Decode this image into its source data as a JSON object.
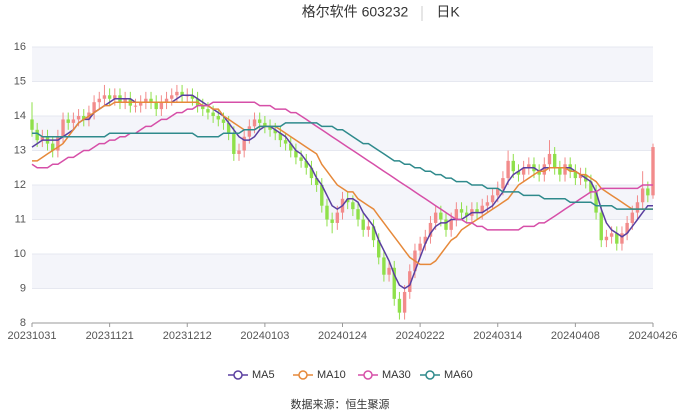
{
  "chart_data": {
    "type": "candlestick",
    "title": "格尔软件 603232",
    "subtitle": "日K",
    "source": "数据来源：恒生聚源",
    "categories": [
      "20231031",
      null,
      null,
      null,
      null,
      null,
      null,
      null,
      null,
      null,
      null,
      null,
      null,
      null,
      null,
      "20231121",
      null,
      null,
      null,
      null,
      null,
      null,
      null,
      null,
      null,
      null,
      null,
      null,
      null,
      null,
      "20231212",
      null,
      null,
      null,
      null,
      null,
      null,
      null,
      null,
      null,
      null,
      null,
      null,
      null,
      null,
      "20240103",
      null,
      null,
      null,
      null,
      null,
      null,
      null,
      null,
      null,
      null,
      null,
      null,
      null,
      null,
      "20240124",
      null,
      null,
      null,
      null,
      null,
      null,
      null,
      null,
      null,
      null,
      null,
      null,
      null,
      null,
      "20240222",
      null,
      null,
      null,
      null,
      null,
      null,
      null,
      null,
      null,
      null,
      null,
      null,
      null,
      null,
      "20240314",
      null,
      null,
      null,
      null,
      null,
      null,
      null,
      null,
      null,
      null,
      null,
      null,
      null,
      null,
      "20240408",
      null,
      null,
      null,
      null,
      null,
      null,
      null,
      null,
      null,
      null,
      null,
      null,
      null,
      null,
      "20240426"
    ],
    "open": [
      13.9,
      13.6,
      13.3,
      13.4,
      13.2,
      13.0,
      13.4,
      13.9,
      13.8,
      13.9,
      14.0,
      13.9,
      14.1,
      14.4,
      14.5,
      14.6,
      14.5,
      14.6,
      14.4,
      14.5,
      14.3,
      14.3,
      14.4,
      14.5,
      14.4,
      14.2,
      14.4,
      14.5,
      14.6,
      14.7,
      14.6,
      14.6,
      14.5,
      14.3,
      14.2,
      14.1,
      14.0,
      13.9,
      13.8,
      13.5,
      12.9,
      13.0,
      13.4,
      13.7,
      13.9,
      13.8,
      13.7,
      13.6,
      13.5,
      13.3,
      13.2,
      13.0,
      12.8,
      12.7,
      12.5,
      12.2,
      12.0,
      11.4,
      11.0,
      10.9,
      11.2,
      11.6,
      11.5,
      11.3,
      11.0,
      10.7,
      10.8,
      10.4,
      9.9,
      9.4,
      9.6,
      8.7,
      8.3,
      8.9,
      9.5,
      10.1,
      10.3,
      10.5,
      10.9,
      11.2,
      11.0,
      10.7,
      11.0,
      11.3,
      11.2,
      11.1,
      11.3,
      11.2,
      11.4,
      11.5,
      11.7,
      11.9,
      12.2,
      12.7,
      12.4,
      12.3,
      12.5,
      12.6,
      12.4,
      12.3,
      12.6,
      12.9,
      12.5,
      12.3,
      12.6,
      12.4,
      12.2,
      12.3,
      12.1,
      11.8,
      11.2,
      10.4,
      10.5,
      10.6,
      10.3,
      10.6,
      10.9,
      11.2,
      11.5,
      11.9,
      11.7
    ],
    "high": [
      14.4,
      13.8,
      13.6,
      13.6,
      13.4,
      13.6,
      14.1,
      14.1,
      14.1,
      14.2,
      14.2,
      14.3,
      14.6,
      14.7,
      14.9,
      14.8,
      14.8,
      14.8,
      14.7,
      14.7,
      14.5,
      14.6,
      14.7,
      14.7,
      14.6,
      14.6,
      14.7,
      14.8,
      14.9,
      14.9,
      14.8,
      14.8,
      14.7,
      14.5,
      14.4,
      14.3,
      14.2,
      14.1,
      14.0,
      13.7,
      13.2,
      13.6,
      13.9,
      14.1,
      14.1,
      14.0,
      13.9,
      13.8,
      13.7,
      13.5,
      13.4,
      13.2,
      13.0,
      12.9,
      12.7,
      12.4,
      12.2,
      11.6,
      11.2,
      11.4,
      11.8,
      11.8,
      11.7,
      11.5,
      11.2,
      11.0,
      11.0,
      10.6,
      10.1,
      9.8,
      9.8,
      8.9,
      9.1,
      9.7,
      10.3,
      10.5,
      10.7,
      11.1,
      11.4,
      11.4,
      11.2,
      11.2,
      11.5,
      11.5,
      11.4,
      11.5,
      11.5,
      11.6,
      11.7,
      11.9,
      12.1,
      12.4,
      13.0,
      12.9,
      12.6,
      12.7,
      12.8,
      12.8,
      12.6,
      12.8,
      13.3,
      13.1,
      12.7,
      12.8,
      12.8,
      12.6,
      12.5,
      12.5,
      12.3,
      12.0,
      11.4,
      10.7,
      10.8,
      10.8,
      10.8,
      11.1,
      11.4,
      11.7,
      12.4,
      12.1,
      13.2
    ],
    "low": [
      13.4,
      13.1,
      13.1,
      13.0,
      12.8,
      12.8,
      13.2,
      13.6,
      13.6,
      13.7,
      13.7,
      13.7,
      13.9,
      14.2,
      14.3,
      14.3,
      14.3,
      14.2,
      14.2,
      14.1,
      14.1,
      14.1,
      14.2,
      14.2,
      14.0,
      14.0,
      14.2,
      14.3,
      14.4,
      14.4,
      14.4,
      14.3,
      14.1,
      14.0,
      13.9,
      13.8,
      13.7,
      13.6,
      13.3,
      12.7,
      12.7,
      12.8,
      13.2,
      13.5,
      13.6,
      13.5,
      13.4,
      13.3,
      13.1,
      13.0,
      12.8,
      12.6,
      12.5,
      12.3,
      12.0,
      11.8,
      11.2,
      10.8,
      10.6,
      10.7,
      11.0,
      11.3,
      11.1,
      10.8,
      10.5,
      10.5,
      10.2,
      9.7,
      9.2,
      9.2,
      8.5,
      8.1,
      8.1,
      8.7,
      9.3,
      9.9,
      10.1,
      10.3,
      10.7,
      10.8,
      10.5,
      10.5,
      10.8,
      11.0,
      10.9,
      10.9,
      11.0,
      11.0,
      11.2,
      11.3,
      11.5,
      11.7,
      12.0,
      12.2,
      12.1,
      12.1,
      12.3,
      12.2,
      12.1,
      12.1,
      12.4,
      12.3,
      12.1,
      12.1,
      12.2,
      12.0,
      12.0,
      11.9,
      11.6,
      11.0,
      10.2,
      10.2,
      10.3,
      10.1,
      10.1,
      10.4,
      10.7,
      11.0,
      11.3,
      11.5,
      11.6
    ],
    "close": [
      13.6,
      13.3,
      13.4,
      13.2,
      13.0,
      13.4,
      13.9,
      13.8,
      13.9,
      14.0,
      13.9,
      14.1,
      14.4,
      14.5,
      14.6,
      14.5,
      14.6,
      14.4,
      14.5,
      14.3,
      14.3,
      14.4,
      14.5,
      14.4,
      14.2,
      14.4,
      14.5,
      14.6,
      14.7,
      14.6,
      14.6,
      14.5,
      14.3,
      14.2,
      14.1,
      14.0,
      13.9,
      13.8,
      13.5,
      12.9,
      13.0,
      13.4,
      13.7,
      13.9,
      13.8,
      13.7,
      13.6,
      13.5,
      13.3,
      13.2,
      13.0,
      12.8,
      12.7,
      12.5,
      12.2,
      12.0,
      11.4,
      11.0,
      10.9,
      11.2,
      11.6,
      11.5,
      11.3,
      11.0,
      10.7,
      10.8,
      10.4,
      9.9,
      9.4,
      9.6,
      8.7,
      8.3,
      8.9,
      9.5,
      10.1,
      10.3,
      10.5,
      10.9,
      11.2,
      11.0,
      10.7,
      11.0,
      11.3,
      11.2,
      11.1,
      11.3,
      11.2,
      11.4,
      11.5,
      11.7,
      11.9,
      12.2,
      12.7,
      12.4,
      12.3,
      12.5,
      12.6,
      12.4,
      12.3,
      12.6,
      12.9,
      12.5,
      12.3,
      12.6,
      12.4,
      12.2,
      12.3,
      12.1,
      11.8,
      11.2,
      10.4,
      10.5,
      10.6,
      10.3,
      10.6,
      10.9,
      11.2,
      11.5,
      11.9,
      11.7,
      13.1
    ],
    "up_color": "#f28b8b",
    "down_color": "#8fe04a",
    "series": [
      {
        "name": "MA5",
        "color": "#5a3fa0",
        "values": [
          13.1,
          13.2,
          13.3,
          13.3,
          13.3,
          13.3,
          13.4,
          13.5,
          13.6,
          13.8,
          13.9,
          13.9,
          14.1,
          14.2,
          14.3,
          14.4,
          14.5,
          14.5,
          14.5,
          14.5,
          14.4,
          14.4,
          14.4,
          14.4,
          14.4,
          14.4,
          14.4,
          14.4,
          14.5,
          14.6,
          14.6,
          14.6,
          14.5,
          14.4,
          14.3,
          14.2,
          14.1,
          14.0,
          13.8,
          13.6,
          13.4,
          13.3,
          13.3,
          13.4,
          13.6,
          13.7,
          13.7,
          13.6,
          13.5,
          13.4,
          13.2,
          13.0,
          12.9,
          12.7,
          12.5,
          12.2,
          12.0,
          11.7,
          11.4,
          11.3,
          11.4,
          11.6,
          11.6,
          11.5,
          11.2,
          11.0,
          10.8,
          10.4,
          10.1,
          9.8,
          9.4,
          9.1,
          9.0,
          9.1,
          9.5,
          9.9,
          10.3,
          10.6,
          10.8,
          10.9,
          10.9,
          11.0,
          11.0,
          11.0,
          11.1,
          11.2,
          11.2,
          11.2,
          11.3,
          11.4,
          11.6,
          11.8,
          12.1,
          12.3,
          12.4,
          12.5,
          12.5,
          12.5,
          12.4,
          12.5,
          12.5,
          12.5,
          12.5,
          12.5,
          12.5,
          12.4,
          12.3,
          12.2,
          12.1,
          11.8,
          11.3,
          10.9,
          10.7,
          10.6,
          10.5,
          10.6,
          10.8,
          11.0,
          11.2,
          11.4,
          11.4
        ]
      },
      {
        "name": "MA10",
        "color": "#e6893a",
        "values": [
          12.7,
          12.7,
          12.8,
          12.9,
          13.0,
          13.1,
          13.2,
          13.4,
          13.6,
          13.8,
          13.9,
          14.0,
          14.1,
          14.2,
          14.3,
          14.3,
          14.4,
          14.4,
          14.4,
          14.4,
          14.4,
          14.4,
          14.4,
          14.4,
          14.4,
          14.4,
          14.4,
          14.4,
          14.4,
          14.4,
          14.4,
          14.4,
          14.4,
          14.3,
          14.3,
          14.2,
          14.2,
          14.0,
          13.9,
          13.8,
          13.7,
          13.6,
          13.6,
          13.6,
          13.7,
          13.7,
          13.7,
          13.7,
          13.6,
          13.5,
          13.4,
          13.3,
          13.2,
          13.1,
          13.0,
          12.9,
          12.6,
          12.4,
          12.2,
          12.0,
          11.9,
          11.8,
          11.8,
          11.6,
          11.5,
          11.4,
          11.3,
          11.1,
          10.9,
          10.7,
          10.5,
          10.3,
          10.1,
          9.9,
          9.8,
          9.7,
          9.7,
          9.7,
          9.8,
          10.0,
          10.2,
          10.4,
          10.5,
          10.7,
          10.8,
          10.9,
          11.0,
          11.1,
          11.2,
          11.3,
          11.4,
          11.5,
          11.6,
          11.8,
          12.0,
          12.1,
          12.2,
          12.3,
          12.4,
          12.4,
          12.5,
          12.5,
          12.5,
          12.5,
          12.4,
          12.4,
          12.3,
          12.3,
          12.2,
          12.1,
          11.9,
          11.8,
          11.7,
          11.6,
          11.5,
          11.4,
          11.3,
          11.3,
          11.3,
          11.3,
          11.3
        ]
      },
      {
        "name": "MA30",
        "color": "#d64fa8",
        "values": [
          12.6,
          12.5,
          12.5,
          12.5,
          12.6,
          12.6,
          12.7,
          12.8,
          12.8,
          12.9,
          13.0,
          13.0,
          13.1,
          13.2,
          13.2,
          13.3,
          13.3,
          13.4,
          13.4,
          13.5,
          13.5,
          13.6,
          13.7,
          13.7,
          13.8,
          13.9,
          13.9,
          14.0,
          14.1,
          14.1,
          14.2,
          14.2,
          14.3,
          14.3,
          14.3,
          14.4,
          14.4,
          14.4,
          14.4,
          14.4,
          14.4,
          14.4,
          14.4,
          14.4,
          14.3,
          14.3,
          14.3,
          14.2,
          14.2,
          14.2,
          14.1,
          14.1,
          14.0,
          13.9,
          13.8,
          13.7,
          13.6,
          13.5,
          13.4,
          13.3,
          13.2,
          13.1,
          13.0,
          12.9,
          12.8,
          12.7,
          12.6,
          12.5,
          12.4,
          12.3,
          12.2,
          12.1,
          12.0,
          11.9,
          11.8,
          11.7,
          11.6,
          11.5,
          11.4,
          11.3,
          11.2,
          11.1,
          11.0,
          11.0,
          10.9,
          10.9,
          10.8,
          10.8,
          10.7,
          10.7,
          10.7,
          10.7,
          10.7,
          10.7,
          10.7,
          10.8,
          10.8,
          10.8,
          10.9,
          10.9,
          11.0,
          11.1,
          11.2,
          11.3,
          11.4,
          11.5,
          11.6,
          11.7,
          11.8,
          11.8,
          11.9,
          11.9,
          11.9,
          11.9,
          11.9,
          11.9,
          11.9,
          11.9,
          12.0,
          12.0,
          12.0
        ]
      },
      {
        "name": "MA60",
        "color": "#2f8a8c",
        "values": [
          13.5,
          13.5,
          13.4,
          13.4,
          13.4,
          13.4,
          13.4,
          13.4,
          13.4,
          13.4,
          13.4,
          13.4,
          13.4,
          13.4,
          13.4,
          13.5,
          13.5,
          13.5,
          13.5,
          13.5,
          13.5,
          13.5,
          13.5,
          13.5,
          13.5,
          13.5,
          13.5,
          13.5,
          13.5,
          13.5,
          13.5,
          13.5,
          13.4,
          13.4,
          13.4,
          13.4,
          13.4,
          13.5,
          13.5,
          13.5,
          13.5,
          13.6,
          13.6,
          13.6,
          13.7,
          13.7,
          13.7,
          13.7,
          13.7,
          13.8,
          13.8,
          13.8,
          13.8,
          13.8,
          13.8,
          13.8,
          13.7,
          13.7,
          13.7,
          13.6,
          13.6,
          13.5,
          13.4,
          13.3,
          13.2,
          13.2,
          13.1,
          13.0,
          12.9,
          12.8,
          12.7,
          12.7,
          12.6,
          12.6,
          12.5,
          12.5,
          12.4,
          12.4,
          12.3,
          12.3,
          12.2,
          12.2,
          12.1,
          12.1,
          12.1,
          12.0,
          12.0,
          12.0,
          11.9,
          11.9,
          11.9,
          11.8,
          11.8,
          11.8,
          11.8,
          11.7,
          11.7,
          11.7,
          11.7,
          11.6,
          11.6,
          11.6,
          11.6,
          11.6,
          11.5,
          11.5,
          11.5,
          11.5,
          11.5,
          11.4,
          11.4,
          11.4,
          11.4,
          11.3,
          11.3,
          11.3,
          11.3,
          11.3,
          11.3,
          11.3,
          11.3
        ]
      }
    ],
    "ylim": [
      8,
      16
    ],
    "yticks": [
      8,
      9,
      10,
      11,
      12,
      13,
      14,
      15,
      16
    ],
    "grid": true
  }
}
